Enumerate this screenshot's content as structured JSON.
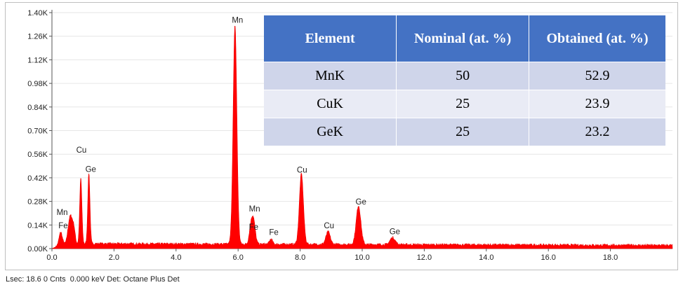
{
  "chart_data": {
    "type": "line",
    "title": "",
    "xlabel": "",
    "ylabel": "",
    "xlim": [
      0,
      20
    ],
    "ylim": [
      0,
      1400
    ],
    "x_ticks": [
      0,
      2,
      4,
      6,
      8,
      10,
      12,
      14,
      16,
      18
    ],
    "x_tick_labels": [
      "0.0",
      "2.0",
      "4.0",
      "6.0",
      "8.0",
      "10.0",
      "12.0",
      "14.0",
      "16.0",
      "18.0"
    ],
    "y_ticks": [
      0,
      140,
      280,
      420,
      560,
      700,
      840,
      980,
      1120,
      1260,
      1400
    ],
    "y_tick_labels": [
      "0.00K",
      "0.14K",
      "0.28K",
      "0.42K",
      "0.56K",
      "0.70K",
      "0.84K",
      "0.98K",
      "1.12K",
      "1.26K",
      "1.40K"
    ],
    "series_color": "#ff0000",
    "background_level": 30,
    "peaks": [
      {
        "x": 0.28,
        "y": 70,
        "w": 0.05
      },
      {
        "x": 0.52,
        "y": 60,
        "w": 0.04
      },
      {
        "x": 0.58,
        "y": 110,
        "w": 0.04
      },
      {
        "x": 0.64,
        "y": 100,
        "w": 0.04
      },
      {
        "x": 0.71,
        "y": 90,
        "w": 0.04
      },
      {
        "x": 0.93,
        "y": 390,
        "w": 0.035
      },
      {
        "x": 1.19,
        "y": 420,
        "w": 0.035
      },
      {
        "x": 5.9,
        "y": 1300,
        "w": 0.06
      },
      {
        "x": 6.49,
        "y": 150,
        "w": 0.06
      },
      {
        "x": 6.4,
        "y": 75,
        "w": 0.05
      },
      {
        "x": 7.06,
        "y": 30,
        "w": 0.05
      },
      {
        "x": 8.04,
        "y": 420,
        "w": 0.065
      },
      {
        "x": 8.9,
        "y": 75,
        "w": 0.07
      },
      {
        "x": 9.88,
        "y": 230,
        "w": 0.075
      },
      {
        "x": 10.98,
        "y": 42,
        "w": 0.08
      }
    ],
    "peak_labels": [
      {
        "text": "Mn",
        "x": 0.33,
        "y": 200
      },
      {
        "text": "Fe",
        "x": 0.36,
        "y": 120
      },
      {
        "text": "Cu",
        "x": 0.95,
        "y": 570
      },
      {
        "text": "Ge",
        "x": 1.25,
        "y": 455
      },
      {
        "text": "Mn",
        "x": 5.98,
        "y": 1340
      },
      {
        "text": "Mn",
        "x": 6.53,
        "y": 220
      },
      {
        "text": "Fe",
        "x": 6.5,
        "y": 112
      },
      {
        "text": "Fe",
        "x": 7.15,
        "y": 80
      },
      {
        "text": "Cu",
        "x": 8.06,
        "y": 450
      },
      {
        "text": "Cu",
        "x": 8.93,
        "y": 120
      },
      {
        "text": "Ge",
        "x": 9.96,
        "y": 262
      },
      {
        "text": "Ge",
        "x": 11.05,
        "y": 85
      }
    ]
  },
  "table": {
    "headers": [
      "Element",
      "Nominal (at. %)",
      "Obtained (at. %)"
    ],
    "rows": [
      [
        "MnK",
        "50",
        "52.9"
      ],
      [
        "CuK",
        "25",
        "23.9"
      ],
      [
        "GeK",
        "25",
        "23.2"
      ]
    ],
    "header_color": "#4472c4",
    "row_colors": [
      "#cfd5ea",
      "#e9ebf5"
    ]
  },
  "status_bar": {
    "text": "Lsec: 18.6 0 Cnts  0.000 keV Det: Octane Plus Det"
  }
}
